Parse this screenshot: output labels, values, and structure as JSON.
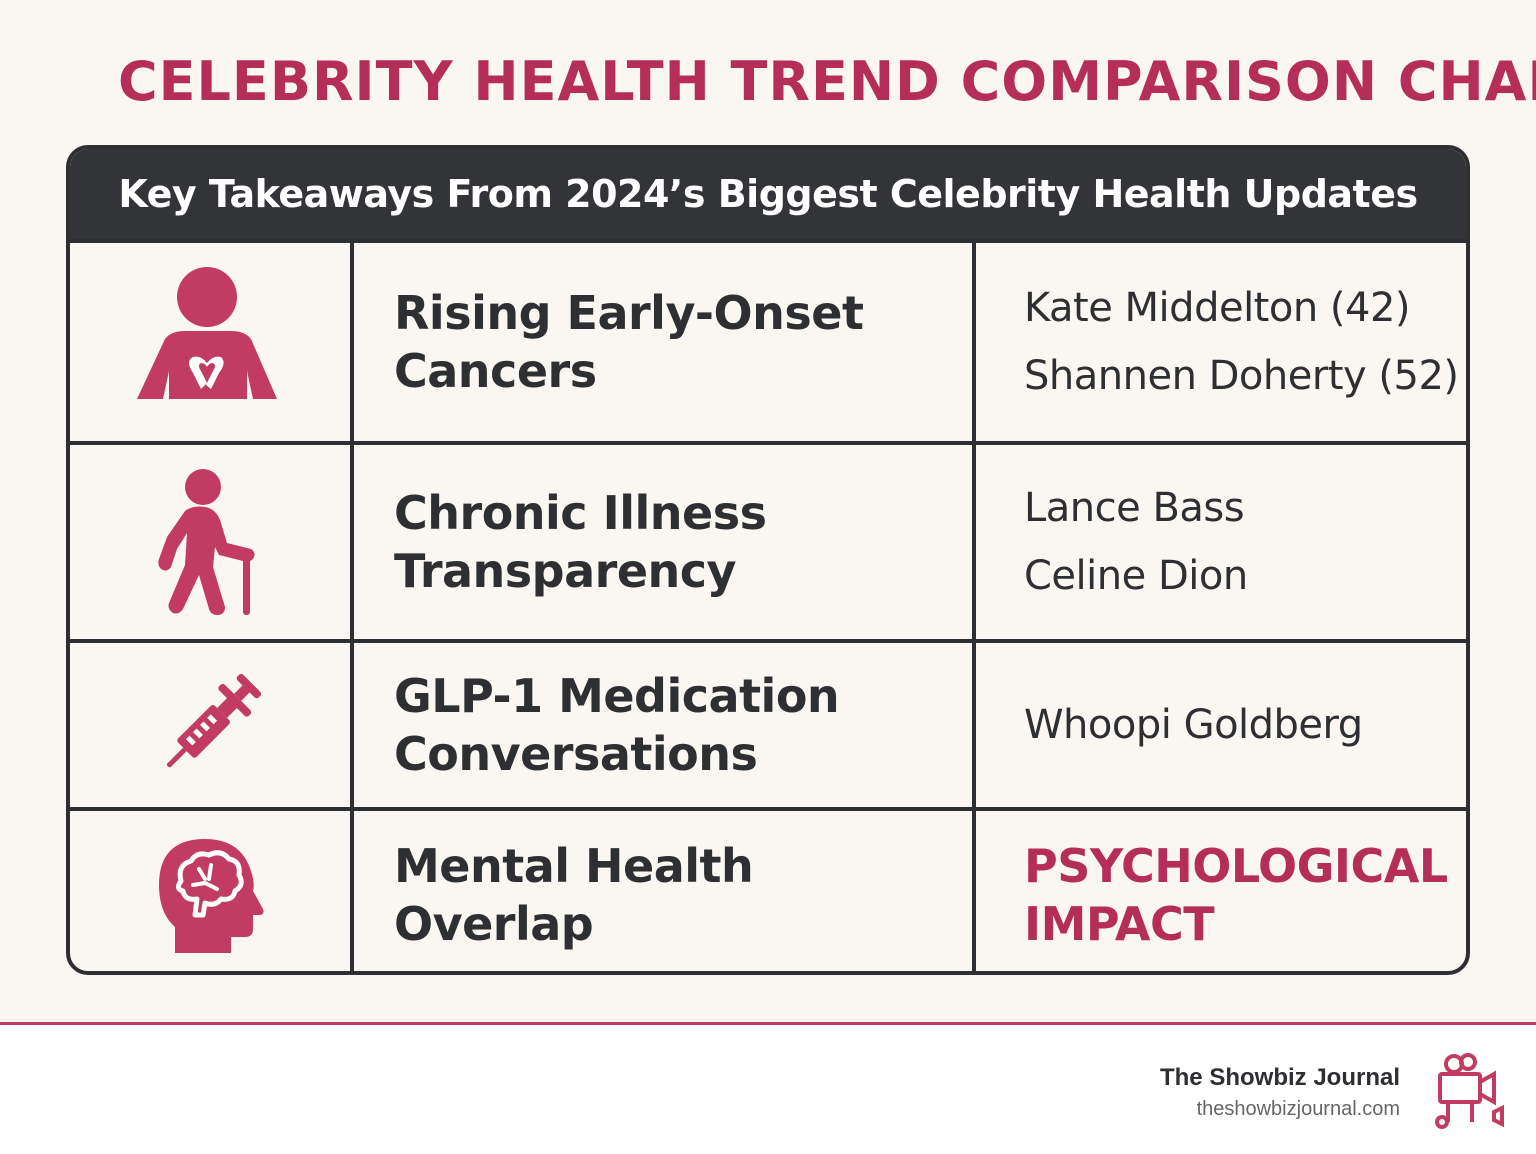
{
  "title": "CELEBRITY HEALTH TREND COMPARISON CHART",
  "table": {
    "header": "Key Takeaways From 2024’s Biggest Celebrity Health Updates",
    "rows": [
      {
        "icon": "person-with-ribbon-icon",
        "trend_line1": "Rising Early-Onset",
        "trend_line2": "Cancers",
        "celebs": [
          "Kate Middelton (42)",
          "Shannen Doherty (52)"
        ]
      },
      {
        "icon": "person-with-cane-icon",
        "trend_line1": "Chronic Illness",
        "trend_line2": "Transparency",
        "celebs": [
          "Lance Bass",
          "Celine Dion"
        ]
      },
      {
        "icon": "syringe-icon",
        "trend_line1": "GLP-1 Medication",
        "trend_line2": "Conversations",
        "celebs": [
          "Whoopi Goldberg"
        ]
      },
      {
        "icon": "head-brain-icon",
        "trend_line1": "Mental Health",
        "trend_line2": "Overlap",
        "impact_line1": "PSYCHOLOGICAL",
        "impact_line2": "IMPACT"
      }
    ]
  },
  "footer": {
    "brand": "The Showbiz Journal",
    "url": "theshowbizjournal.com",
    "logo_icon": "film-camera-logo-icon"
  },
  "colors": {
    "accent": "#b52e5a",
    "dark": "#2e2f33",
    "background": "#faf6f1"
  }
}
